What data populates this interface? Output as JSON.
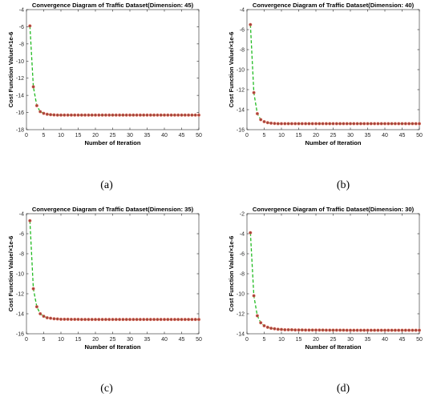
{
  "chart_data": [
    {
      "type": "line",
      "title": "Convergence Diagram of Traffic Dataset(Dimension: 45)",
      "xlabel": "Number of Iteration",
      "ylabel": "Cost Function Value/×1e-6",
      "xlim": [
        0,
        50
      ],
      "ylim": [
        -18,
        -4
      ],
      "xticks": [
        0,
        5,
        10,
        15,
        20,
        25,
        30,
        35,
        40,
        45,
        50
      ],
      "yticks": [
        -18,
        -16,
        -14,
        -12,
        -10,
        -8,
        -6,
        -4
      ],
      "grid": false,
      "caption": "(a)",
      "colors": {
        "line": "#22bb22",
        "marker": "#a8443c"
      },
      "x": [
        1,
        2,
        3,
        4,
        5,
        6,
        7,
        8,
        9,
        10,
        11,
        12,
        13,
        14,
        15,
        16,
        17,
        18,
        19,
        20,
        21,
        22,
        23,
        24,
        25,
        26,
        27,
        28,
        29,
        30,
        31,
        32,
        33,
        34,
        35,
        36,
        37,
        38,
        39,
        40,
        41,
        42,
        43,
        44,
        45,
        46,
        47,
        48,
        49,
        50
      ],
      "series": [
        {
          "values": [
            -5.9,
            -13.0,
            -15.2,
            -15.9,
            -16.1,
            -16.2,
            -16.25,
            -16.28,
            -16.3,
            -16.3,
            -16.3,
            -16.3,
            -16.3,
            -16.3,
            -16.3,
            -16.3,
            -16.3,
            -16.3,
            -16.3,
            -16.3,
            -16.3,
            -16.3,
            -16.3,
            -16.3,
            -16.3,
            -16.3,
            -16.3,
            -16.3,
            -16.3,
            -16.3,
            -16.3,
            -16.3,
            -16.3,
            -16.3,
            -16.3,
            -16.3,
            -16.3,
            -16.3,
            -16.3,
            -16.3,
            -16.3,
            -16.3,
            -16.3,
            -16.3,
            -16.3,
            -16.3,
            -16.3,
            -16.3,
            -16.3,
            -16.3
          ]
        }
      ]
    },
    {
      "type": "line",
      "title": "Convergence Diagram of Traffic Dataset(Dimension: 40)",
      "xlabel": "Number of Iteration",
      "ylabel": "Cost Function Value/×1e-6",
      "xlim": [
        0,
        50
      ],
      "ylim": [
        -16,
        -4
      ],
      "xticks": [
        0,
        5,
        10,
        15,
        20,
        25,
        30,
        35,
        40,
        45,
        50
      ],
      "yticks": [
        -16,
        -14,
        -12,
        -10,
        -8,
        -6,
        -4
      ],
      "grid": false,
      "caption": "(b)",
      "colors": {
        "line": "#22bb22",
        "marker": "#a8443c"
      },
      "x": [
        1,
        2,
        3,
        4,
        5,
        6,
        7,
        8,
        9,
        10,
        11,
        12,
        13,
        14,
        15,
        16,
        17,
        18,
        19,
        20,
        21,
        22,
        23,
        24,
        25,
        26,
        27,
        28,
        29,
        30,
        31,
        32,
        33,
        34,
        35,
        36,
        37,
        38,
        39,
        40,
        41,
        42,
        43,
        44,
        45,
        46,
        47,
        48,
        49,
        50
      ],
      "series": [
        {
          "values": [
            -5.5,
            -12.3,
            -14.4,
            -15.0,
            -15.2,
            -15.3,
            -15.35,
            -15.38,
            -15.4,
            -15.4,
            -15.4,
            -15.4,
            -15.4,
            -15.4,
            -15.4,
            -15.4,
            -15.4,
            -15.4,
            -15.4,
            -15.4,
            -15.4,
            -15.4,
            -15.4,
            -15.4,
            -15.4,
            -15.4,
            -15.4,
            -15.4,
            -15.4,
            -15.4,
            -15.4,
            -15.4,
            -15.4,
            -15.4,
            -15.4,
            -15.4,
            -15.4,
            -15.4,
            -15.4,
            -15.4,
            -15.4,
            -15.4,
            -15.4,
            -15.4,
            -15.4,
            -15.4,
            -15.4,
            -15.4,
            -15.4,
            -15.4
          ]
        }
      ]
    },
    {
      "type": "line",
      "title": "Convergence Diagram of Traffic Dataset(Dimension: 35)",
      "xlabel": "Number of Iteration",
      "ylabel": "Cost Function Value/×1e-6",
      "xlim": [
        0,
        50
      ],
      "ylim": [
        -16,
        -4
      ],
      "xticks": [
        0,
        5,
        10,
        15,
        20,
        25,
        30,
        35,
        40,
        45,
        50
      ],
      "yticks": [
        -16,
        -14,
        -12,
        -10,
        -8,
        -6,
        -4
      ],
      "grid": false,
      "caption": "(c)",
      "colors": {
        "line": "#22bb22",
        "marker": "#a8443c"
      },
      "x": [
        1,
        2,
        3,
        4,
        5,
        6,
        7,
        8,
        9,
        10,
        11,
        12,
        13,
        14,
        15,
        16,
        17,
        18,
        19,
        20,
        21,
        22,
        23,
        24,
        25,
        26,
        27,
        28,
        29,
        30,
        31,
        32,
        33,
        34,
        35,
        36,
        37,
        38,
        39,
        40,
        41,
        42,
        43,
        44,
        45,
        46,
        47,
        48,
        49,
        50
      ],
      "series": [
        {
          "values": [
            -4.7,
            -11.5,
            -13.3,
            -14.0,
            -14.25,
            -14.4,
            -14.45,
            -14.5,
            -14.52,
            -14.55,
            -14.55,
            -14.55,
            -14.56,
            -14.56,
            -14.56,
            -14.57,
            -14.57,
            -14.57,
            -14.57,
            -14.57,
            -14.57,
            -14.57,
            -14.57,
            -14.57,
            -14.57,
            -14.57,
            -14.57,
            -14.57,
            -14.57,
            -14.57,
            -14.57,
            -14.57,
            -14.57,
            -14.57,
            -14.57,
            -14.57,
            -14.57,
            -14.57,
            -14.57,
            -14.57,
            -14.57,
            -14.57,
            -14.57,
            -14.57,
            -14.57,
            -14.57,
            -14.57,
            -14.57,
            -14.57,
            -14.57
          ]
        }
      ]
    },
    {
      "type": "line",
      "title": "Convergence Diagram of Traffic Dataset(Dimension: 30)",
      "xlabel": "Number of Iteration",
      "ylabel": "Cost Function Value/×1e-6",
      "xlim": [
        0,
        50
      ],
      "ylim": [
        -14,
        -2
      ],
      "xticks": [
        0,
        5,
        10,
        15,
        20,
        25,
        30,
        35,
        40,
        45,
        50
      ],
      "yticks": [
        -14,
        -12,
        -10,
        -8,
        -6,
        -4,
        -2
      ],
      "grid": false,
      "caption": "(d)",
      "colors": {
        "line": "#22bb22",
        "marker": "#a8443c"
      },
      "x": [
        1,
        2,
        3,
        4,
        5,
        6,
        7,
        8,
        9,
        10,
        11,
        12,
        13,
        14,
        15,
        16,
        17,
        18,
        19,
        20,
        21,
        22,
        23,
        24,
        25,
        26,
        27,
        28,
        29,
        30,
        31,
        32,
        33,
        34,
        35,
        36,
        37,
        38,
        39,
        40,
        41,
        42,
        43,
        44,
        45,
        46,
        47,
        48,
        49,
        50
      ],
      "series": [
        {
          "values": [
            -3.9,
            -10.2,
            -12.2,
            -12.9,
            -13.2,
            -13.35,
            -13.45,
            -13.5,
            -13.55,
            -13.57,
            -13.6,
            -13.6,
            -13.6,
            -13.62,
            -13.62,
            -13.62,
            -13.63,
            -13.63,
            -13.63,
            -13.63,
            -13.63,
            -13.63,
            -13.64,
            -13.64,
            -13.64,
            -13.64,
            -13.64,
            -13.64,
            -13.65,
            -13.65,
            -13.65,
            -13.65,
            -13.65,
            -13.65,
            -13.65,
            -13.65,
            -13.65,
            -13.65,
            -13.65,
            -13.65,
            -13.65,
            -13.65,
            -13.65,
            -13.65,
            -13.65,
            -13.65,
            -13.65,
            -13.65,
            -13.65,
            -13.65
          ]
        }
      ]
    }
  ]
}
